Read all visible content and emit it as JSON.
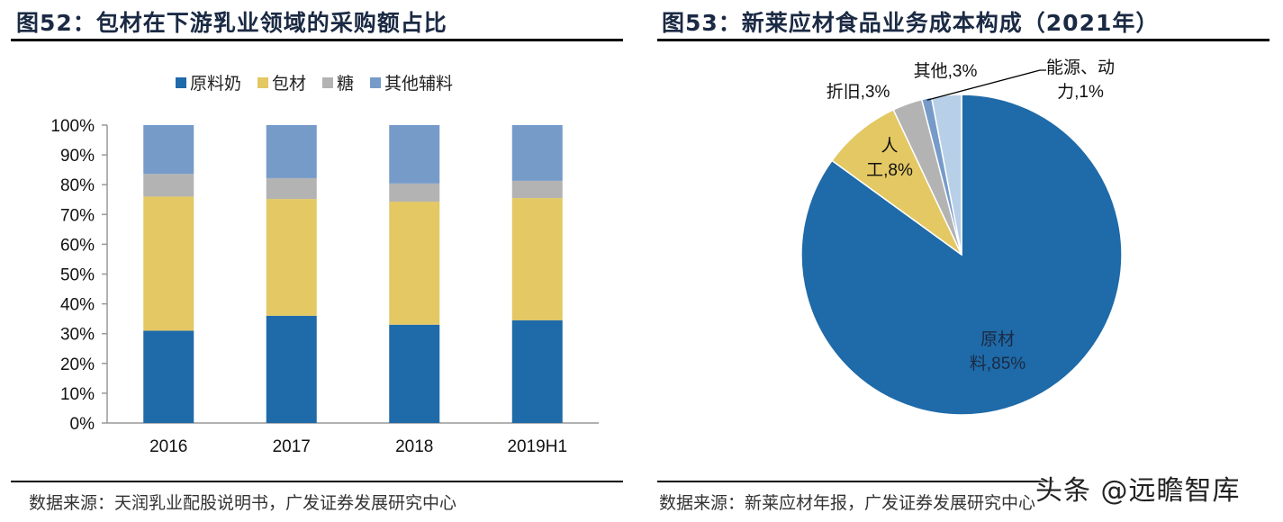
{
  "left_panel": {
    "title": "图52：包材在下游乳业领域的采购额占比",
    "source": "数据来源：天润乳业配股说明书，广发证券发展研究中心"
  },
  "right_panel": {
    "title": "图53：新莱应材食品业务成本构成（2021年）",
    "source": "数据来源：新莱应材年报，广发证券发展研究中心"
  },
  "watermark": "头条 @远瞻智库",
  "chart_data": [
    {
      "type": "bar",
      "stacked": true,
      "title": "包材在下游乳业领域的采购额占比",
      "categories": [
        "2016",
        "2017",
        "2018",
        "2019H1"
      ],
      "series": [
        {
          "name": "原料奶",
          "color": "#1f6aa8",
          "values": [
            31.0,
            36.0,
            33.0,
            34.5
          ]
        },
        {
          "name": "包材",
          "color": "#e3c864",
          "values": [
            45.0,
            39.2,
            41.3,
            41.0
          ]
        },
        {
          "name": "糖",
          "color": "#b3b3b3",
          "values": [
            7.6,
            7.0,
            6.1,
            5.8
          ]
        },
        {
          "name": "其他辅料",
          "color": "#769bc9",
          "values": [
            16.4,
            17.8,
            19.6,
            18.7
          ]
        }
      ],
      "yticks": [
        "0%",
        "10%",
        "20%",
        "30%",
        "40%",
        "50%",
        "60%",
        "70%",
        "80%",
        "90%",
        "100%"
      ],
      "ylim": [
        0,
        100
      ],
      "xlabel": "",
      "ylabel": "",
      "legend": "top",
      "grid": false
    },
    {
      "type": "pie",
      "title": "新莱应材食品业务成本构成（2021年）",
      "slices": [
        {
          "name": "原材料",
          "value": 85,
          "label_lines": [
            "原材",
            "料,85%"
          ],
          "color": "#1f6aa8"
        },
        {
          "name": "人工",
          "value": 8,
          "label_lines": [
            "人",
            "工,8%"
          ],
          "color": "#e3c864"
        },
        {
          "name": "折旧",
          "value": 3,
          "label_lines": [
            "折旧,3%"
          ],
          "color": "#b3b3b3"
        },
        {
          "name": "能源、动力",
          "value": 1,
          "label_lines": [
            "能源、动",
            "力,1%"
          ],
          "color": "#769bc9"
        },
        {
          "name": "其他",
          "value": 3,
          "label_lines": [
            "其他,3%"
          ],
          "color": "#b8cfe8"
        }
      ],
      "start": "top",
      "direction": "clockwise"
    }
  ]
}
